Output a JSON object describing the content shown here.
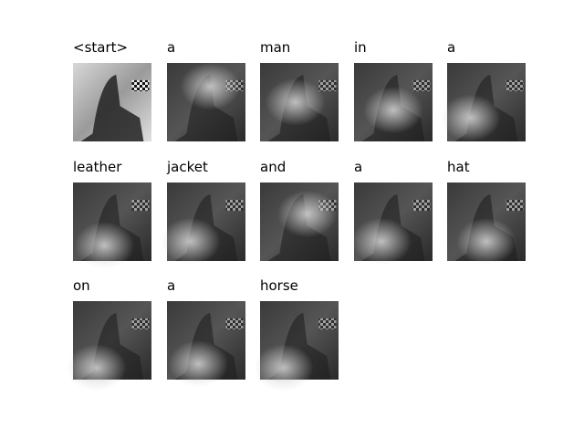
{
  "words": [
    "<start>",
    "a",
    "man",
    "in",
    "a",
    "leather",
    "jacket",
    "and",
    "a",
    "hat",
    "on",
    "a",
    "horse"
  ]
}
